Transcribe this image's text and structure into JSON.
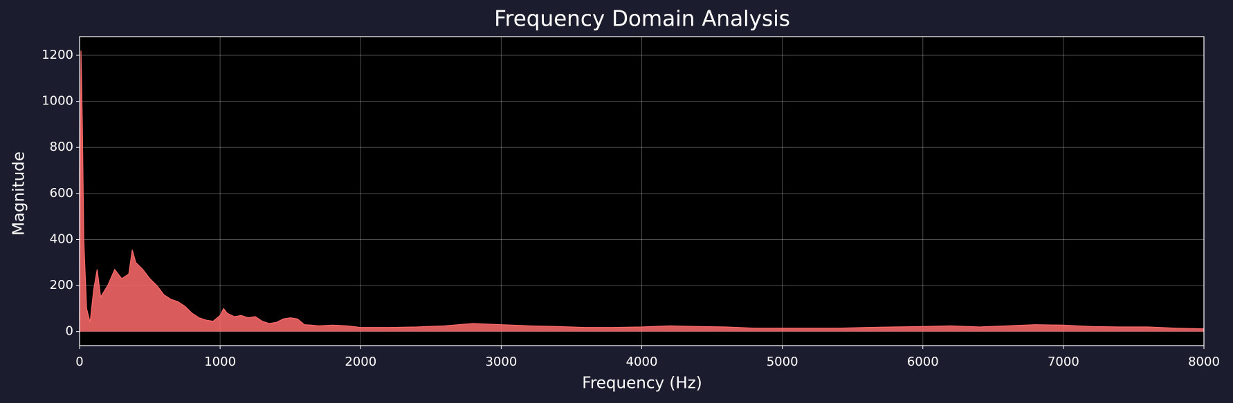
{
  "chart_data": {
    "type": "area",
    "title": "Frequency Domain Analysis",
    "x_label": "Frequency (Hz)",
    "y_label": "Magnitude",
    "x": [
      0,
      10,
      20,
      30,
      50,
      75,
      100,
      125,
      150,
      200,
      250,
      300,
      350,
      375,
      400,
      450,
      500,
      550,
      600,
      650,
      700,
      750,
      800,
      850,
      900,
      950,
      1000,
      1025,
      1050,
      1100,
      1150,
      1200,
      1250,
      1300,
      1350,
      1400,
      1450,
      1500,
      1550,
      1600,
      1650,
      1700,
      1800,
      1900,
      2000,
      2200,
      2400,
      2600,
      2800,
      3000,
      3200,
      3400,
      3600,
      3800,
      4000,
      4200,
      4400,
      4600,
      4800,
      5000,
      5200,
      5400,
      5600,
      5800,
      6000,
      6200,
      6400,
      6600,
      6800,
      7000,
      7200,
      7400,
      7600,
      7800,
      8000
    ],
    "values": [
      50,
      1220,
      900,
      400,
      100,
      40,
      180,
      270,
      150,
      200,
      270,
      230,
      250,
      355,
      300,
      270,
      230,
      200,
      160,
      140,
      130,
      110,
      80,
      60,
      50,
      45,
      70,
      100,
      80,
      65,
      70,
      60,
      65,
      45,
      35,
      40,
      55,
      60,
      55,
      30,
      28,
      25,
      28,
      25,
      18,
      18,
      20,
      25,
      35,
      30,
      25,
      22,
      18,
      18,
      20,
      25,
      22,
      20,
      15,
      15,
      15,
      15,
      18,
      20,
      22,
      25,
      20,
      25,
      30,
      28,
      22,
      20,
      20,
      15,
      12
    ],
    "color": "#ff6b6b",
    "xlim": [
      0,
      8000
    ],
    "xticks": [
      0,
      1000,
      2000,
      3000,
      4000,
      5000,
      6000,
      7000,
      8000
    ],
    "ylim": [
      -61,
      1281
    ],
    "yticks": [
      0,
      200,
      400,
      600,
      800,
      1000,
      1200
    ],
    "grid": true
  }
}
